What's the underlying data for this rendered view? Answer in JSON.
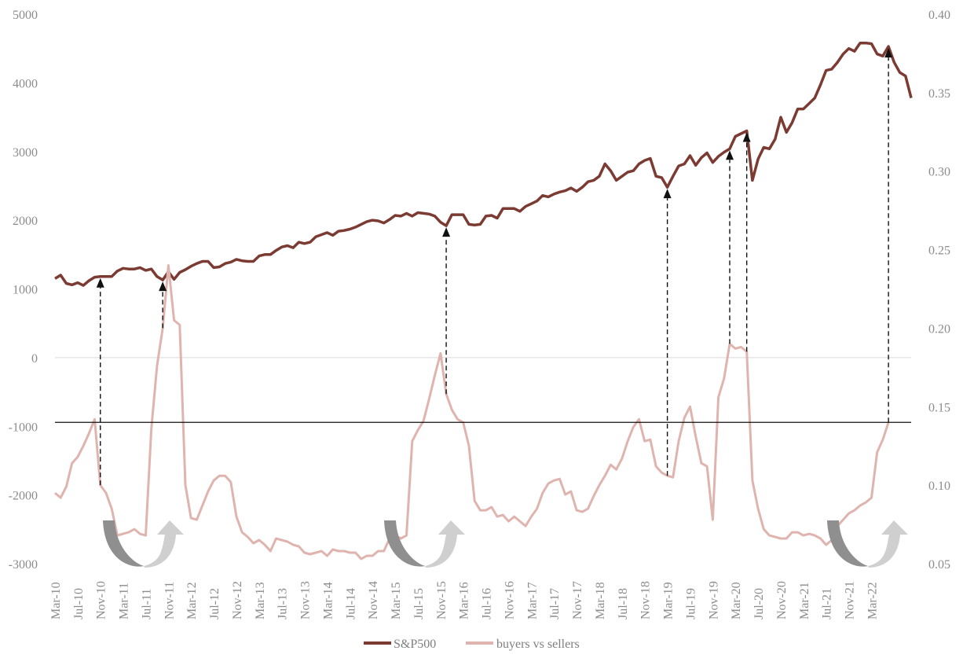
{
  "chart_data": {
    "type": "line",
    "title": "",
    "xlabel": "",
    "y_left_range": [
      -3000,
      5000
    ],
    "y_right_range": [
      0.05,
      0.4
    ],
    "grid": "horizontal zero line only",
    "legend_placement": "bottom-center",
    "y_left_ticks": [
      "5000",
      "4000",
      "3000",
      "2000",
      "1000",
      "0",
      "-1000",
      "-2000",
      "-3000"
    ],
    "y_right_ticks": [
      "0.40",
      "0.35",
      "0.30",
      "0.25",
      "0.20",
      "0.15",
      "0.10",
      "0.05"
    ],
    "x_tick_labels": [
      "Mar-10",
      "Jul-10",
      "Nov-10",
      "Mar-11",
      "Jul-11",
      "Nov-11",
      "Mar-12",
      "Jul-12",
      "Nov-12",
      "Mar-13",
      "Jul-13",
      "Nov-13",
      "Mar-14",
      "Jul-14",
      "Nov-14",
      "Mar-15",
      "Jul-15",
      "Nov-15",
      "Mar-16",
      "Jul-16",
      "Nov-16",
      "Mar-17",
      "Jul-17",
      "Nov-17",
      "Mar-18",
      "Jul-18",
      "Nov-18",
      "Mar-19",
      "Jul-19",
      "Nov-19",
      "Mar-20",
      "Jul-20",
      "Nov-20",
      "Mar-21",
      "Jul-21",
      "Nov-21",
      "Mar-22"
    ],
    "threshold_line_right_axis": 0.14,
    "series": [
      {
        "name": "S&P500",
        "axis": "left",
        "color": "#7b3b33",
        "values": [
          1150,
          1200,
          1080,
          1060,
          1090,
          1050,
          1120,
          1170,
          1180,
          1180,
          1180,
          1260,
          1300,
          1290,
          1290,
          1310,
          1270,
          1290,
          1180,
          1130,
          1250,
          1140,
          1240,
          1280,
          1330,
          1370,
          1400,
          1400,
          1310,
          1320,
          1370,
          1390,
          1430,
          1410,
          1400,
          1400,
          1480,
          1500,
          1500,
          1560,
          1610,
          1630,
          1600,
          1680,
          1660,
          1680,
          1760,
          1790,
          1820,
          1780,
          1840,
          1850,
          1870,
          1900,
          1940,
          1980,
          2000,
          1990,
          1960,
          2010,
          2070,
          2060,
          2100,
          2060,
          2110,
          2100,
          2090,
          2060,
          1970,
          1920,
          2080,
          2080,
          2080,
          1940,
          1930,
          1940,
          2060,
          2070,
          2030,
          2170,
          2170,
          2170,
          2130,
          2200,
          2240,
          2280,
          2360,
          2340,
          2380,
          2410,
          2430,
          2470,
          2420,
          2480,
          2560,
          2580,
          2640,
          2820,
          2720,
          2580,
          2640,
          2700,
          2720,
          2820,
          2870,
          2900,
          2640,
          2620,
          2480,
          2640,
          2790,
          2820,
          2940,
          2800,
          2910,
          2980,
          2840,
          2930,
          2990,
          3040,
          3220,
          3260,
          3300,
          2580,
          2890,
          3060,
          3040,
          3180,
          3500,
          3280,
          3420,
          3620,
          3620,
          3700,
          3780,
          3970,
          4180,
          4200,
          4300,
          4420,
          4500,
          4460,
          4580,
          4580,
          4570,
          4420,
          4390,
          4530,
          4300,
          4150,
          4100,
          3780
        ]
      },
      {
        "name": "buyers vs sellers",
        "axis": "right",
        "color": "#e0b4ae",
        "values": [
          0.095,
          0.092,
          0.099,
          0.114,
          0.118,
          0.125,
          0.133,
          0.142,
          0.1,
          0.095,
          0.085,
          0.068,
          0.069,
          0.07,
          0.072,
          0.069,
          0.068,
          0.136,
          0.176,
          0.2,
          0.24,
          0.205,
          0.202,
          0.1,
          0.079,
          0.078,
          0.087,
          0.096,
          0.103,
          0.106,
          0.106,
          0.102,
          0.08,
          0.07,
          0.067,
          0.063,
          0.065,
          0.062,
          0.058,
          0.066,
          0.065,
          0.064,
          0.062,
          0.061,
          0.057,
          0.056,
          0.057,
          0.058,
          0.055,
          0.059,
          0.058,
          0.058,
          0.057,
          0.057,
          0.053,
          0.055,
          0.055,
          0.058,
          0.058,
          0.066,
          0.068,
          0.066,
          0.068,
          0.128,
          0.135,
          0.141,
          0.155,
          0.17,
          0.184,
          0.158,
          0.148,
          0.142,
          0.14,
          0.125,
          0.09,
          0.084,
          0.084,
          0.086,
          0.08,
          0.081,
          0.077,
          0.08,
          0.077,
          0.074,
          0.08,
          0.085,
          0.095,
          0.101,
          0.103,
          0.104,
          0.094,
          0.096,
          0.084,
          0.083,
          0.085,
          0.093,
          0.1,
          0.106,
          0.113,
          0.11,
          0.117,
          0.128,
          0.137,
          0.142,
          0.128,
          0.129,
          0.112,
          0.108,
          0.106,
          0.105,
          0.128,
          0.143,
          0.15,
          0.131,
          0.114,
          0.112,
          0.078,
          0.156,
          0.168,
          0.19,
          0.187,
          0.188,
          0.185,
          0.103,
          0.085,
          0.072,
          0.068,
          0.067,
          0.066,
          0.066,
          0.07,
          0.07,
          0.068,
          0.069,
          0.068,
          0.066,
          0.062,
          0.065,
          0.074,
          0.078,
          0.082,
          0.084,
          0.087,
          0.089,
          0.092,
          0.121,
          0.129,
          0.14
        ]
      }
    ],
    "annotation_arrows_at_x_index": [
      8,
      19,
      69,
      108,
      119,
      122,
      147
    ]
  }
}
